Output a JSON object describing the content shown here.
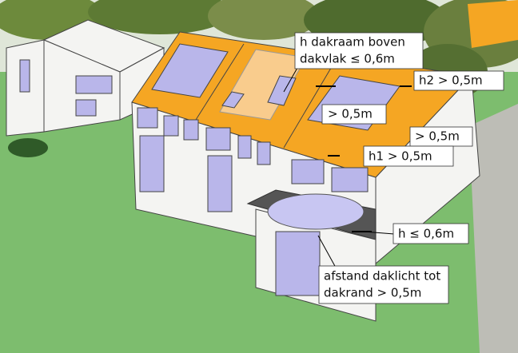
{
  "annotations": [
    {
      "lines": [
        "h dakraam boven",
        "dakvlak ≤ 0,6m"
      ]
    },
    {
      "lines": [
        "h2 > 0,5m"
      ]
    },
    {
      "lines": [
        "> 0,5m"
      ]
    },
    {
      "lines": [
        "> 0,5m"
      ]
    },
    {
      "lines": [
        "h1 > 0,5m"
      ]
    },
    {
      "lines": [
        "h ≤ 0,6m"
      ]
    },
    {
      "lines": [
        "afstand daklicht tot",
        "dakrand > 0,5m"
      ]
    }
  ]
}
